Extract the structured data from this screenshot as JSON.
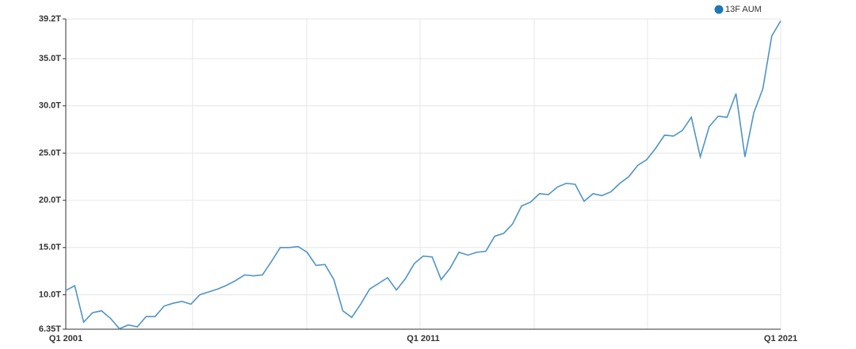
{
  "chart_data": {
    "type": "line",
    "categories": [
      "Q1 2001",
      null,
      null,
      null,
      null,
      null,
      null,
      null,
      null,
      null,
      null,
      null,
      null,
      null,
      null,
      null,
      null,
      null,
      null,
      null,
      null,
      null,
      null,
      null,
      null,
      null,
      null,
      null,
      null,
      null,
      null,
      null,
      null,
      null,
      null,
      null,
      null,
      null,
      null,
      null,
      "Q1 2011",
      null,
      null,
      null,
      null,
      null,
      null,
      null,
      null,
      null,
      null,
      null,
      null,
      null,
      null,
      null,
      null,
      null,
      null,
      null,
      null,
      null,
      null,
      null,
      null,
      null,
      null,
      null,
      null,
      null,
      null,
      null,
      null,
      null,
      null,
      null,
      null,
      null,
      null,
      null,
      "Q1 2021"
    ],
    "series": [
      {
        "name": "13F AUM",
        "color": "#4d94c7",
        "values": [
          10.45,
          10.95,
          7.1,
          8.1,
          8.3,
          7.5,
          6.4,
          6.8,
          6.6,
          7.7,
          7.7,
          8.8,
          9.1,
          9.3,
          9.0,
          10.0,
          10.3,
          10.6,
          11.0,
          11.5,
          12.1,
          12.0,
          12.1,
          13.5,
          15.0,
          15.0,
          15.1,
          14.5,
          13.1,
          13.2,
          11.6,
          8.3,
          7.6,
          9.0,
          10.6,
          11.2,
          11.8,
          10.5,
          11.7,
          13.3,
          14.1,
          14.0,
          11.6,
          12.8,
          14.5,
          14.2,
          14.5,
          14.6,
          16.2,
          16.5,
          17.5,
          19.4,
          19.8,
          20.7,
          20.6,
          21.4,
          21.8,
          21.7,
          19.9,
          20.7,
          20.5,
          20.9,
          21.8,
          22.5,
          23.7,
          24.3,
          25.5,
          26.9,
          26.8,
          27.4,
          28.8,
          24.6,
          27.8,
          28.9,
          28.8,
          31.3,
          24.6,
          29.3,
          31.8,
          37.4,
          39.0
        ]
      }
    ],
    "legend_color": "#1f77b4",
    "ylim": [
      6.35,
      39.2
    ],
    "yticks": [
      {
        "value": 6.35,
        "label": "6.35T"
      },
      {
        "value": 10,
        "label": "10.0T"
      },
      {
        "value": 15,
        "label": "15.0T"
      },
      {
        "value": 20,
        "label": "20.0T"
      },
      {
        "value": 25,
        "label": "25.0T"
      },
      {
        "value": 30,
        "label": "30.0T"
      },
      {
        "value": 35,
        "label": "35.0T"
      },
      {
        "value": 39.2,
        "label": "39.2T"
      }
    ],
    "grid": true
  }
}
